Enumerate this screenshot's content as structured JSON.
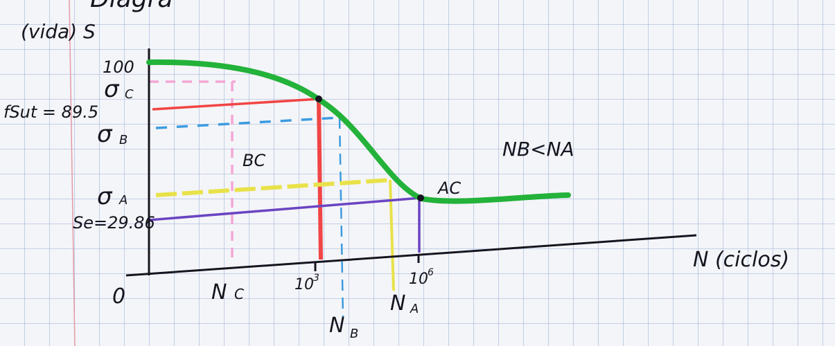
{
  "header": {
    "title_fragment": "Diagra"
  },
  "axes": {
    "y_label": "(vida) S",
    "x_label": "N (ciclos)",
    "origin": "0"
  },
  "y_labels": {
    "top": "100",
    "sigma_c": "σ",
    "sigma_c_sub": "C",
    "fsut": "fSut = 89.5",
    "sigma_b": "σ",
    "sigma_b_sub": "B",
    "sigma_a": "σ",
    "sigma_a_sub": "A",
    "se": "Se=29.86"
  },
  "x_labels": {
    "nc": "N",
    "nc_sub": "C",
    "n3": "10",
    "n3_exp": "3",
    "nb": "N",
    "nb_sub": "B",
    "na": "N",
    "na_sub": "A",
    "n6": "10",
    "n6_exp": "6"
  },
  "annotations": {
    "bc": "BC",
    "ac": "AC",
    "relation": "NB<NA"
  }
}
